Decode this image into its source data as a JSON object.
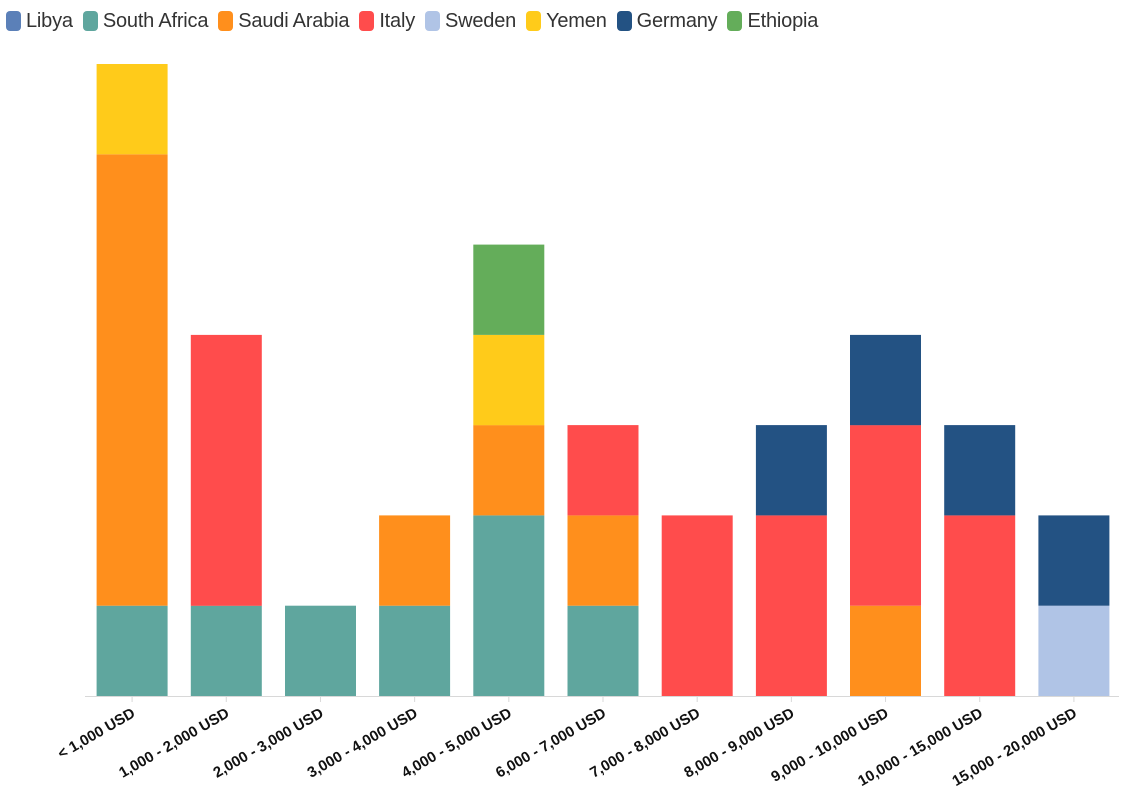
{
  "chart_data": {
    "type": "bar",
    "stacked": true,
    "categories": [
      "< 1,000 USD",
      "1,000 - 2,000 USD",
      "2,000 - 3,000 USD",
      "3,000 - 4,000 USD",
      "4,000 - 5,000 USD",
      "6,000 - 7,000 USD",
      "7,000 - 8,000 USD",
      "8,000 - 9,000 USD",
      "9,000 - 10,000 USD",
      "10,000 - 15,000 USD",
      "15,000 - 20,000 USD"
    ],
    "series": [
      {
        "name": "Libya",
        "color": "#5b80b8",
        "values": [
          0,
          0,
          0,
          0,
          0,
          0,
          0,
          0,
          0,
          0,
          0
        ]
      },
      {
        "name": "South Africa",
        "color": "#5fa69e",
        "values": [
          1,
          1,
          1,
          1,
          2,
          1,
          0,
          0,
          0,
          0,
          0
        ]
      },
      {
        "name": "Saudi Arabia",
        "color": "#ff8f1c",
        "values": [
          5,
          0,
          0,
          1,
          1,
          1,
          0,
          0,
          1,
          0,
          0
        ]
      },
      {
        "name": "Italy",
        "color": "#ff4c4c",
        "values": [
          0,
          3,
          0,
          0,
          0,
          1,
          2,
          2,
          2,
          2,
          0
        ]
      },
      {
        "name": "Sweden",
        "color": "#b0c4e6",
        "values": [
          0,
          0,
          0,
          0,
          0,
          0,
          0,
          0,
          0,
          0,
          1
        ]
      },
      {
        "name": "Yemen",
        "color": "#ffcb1a",
        "values": [
          1,
          0,
          0,
          0,
          1,
          0,
          0,
          0,
          0,
          0,
          0
        ]
      },
      {
        "name": "Germany",
        "color": "#235283",
        "values": [
          0,
          0,
          0,
          0,
          0,
          0,
          0,
          1,
          1,
          1,
          1
        ]
      },
      {
        "name": "Ethiopia",
        "color": "#64ad5a",
        "values": [
          0,
          0,
          0,
          0,
          1,
          0,
          0,
          0,
          0,
          0,
          0
        ]
      }
    ],
    "ylim": [
      0,
      7
    ],
    "xlabel": "",
    "ylabel": "",
    "grid": false,
    "legend_position": "top-left"
  }
}
